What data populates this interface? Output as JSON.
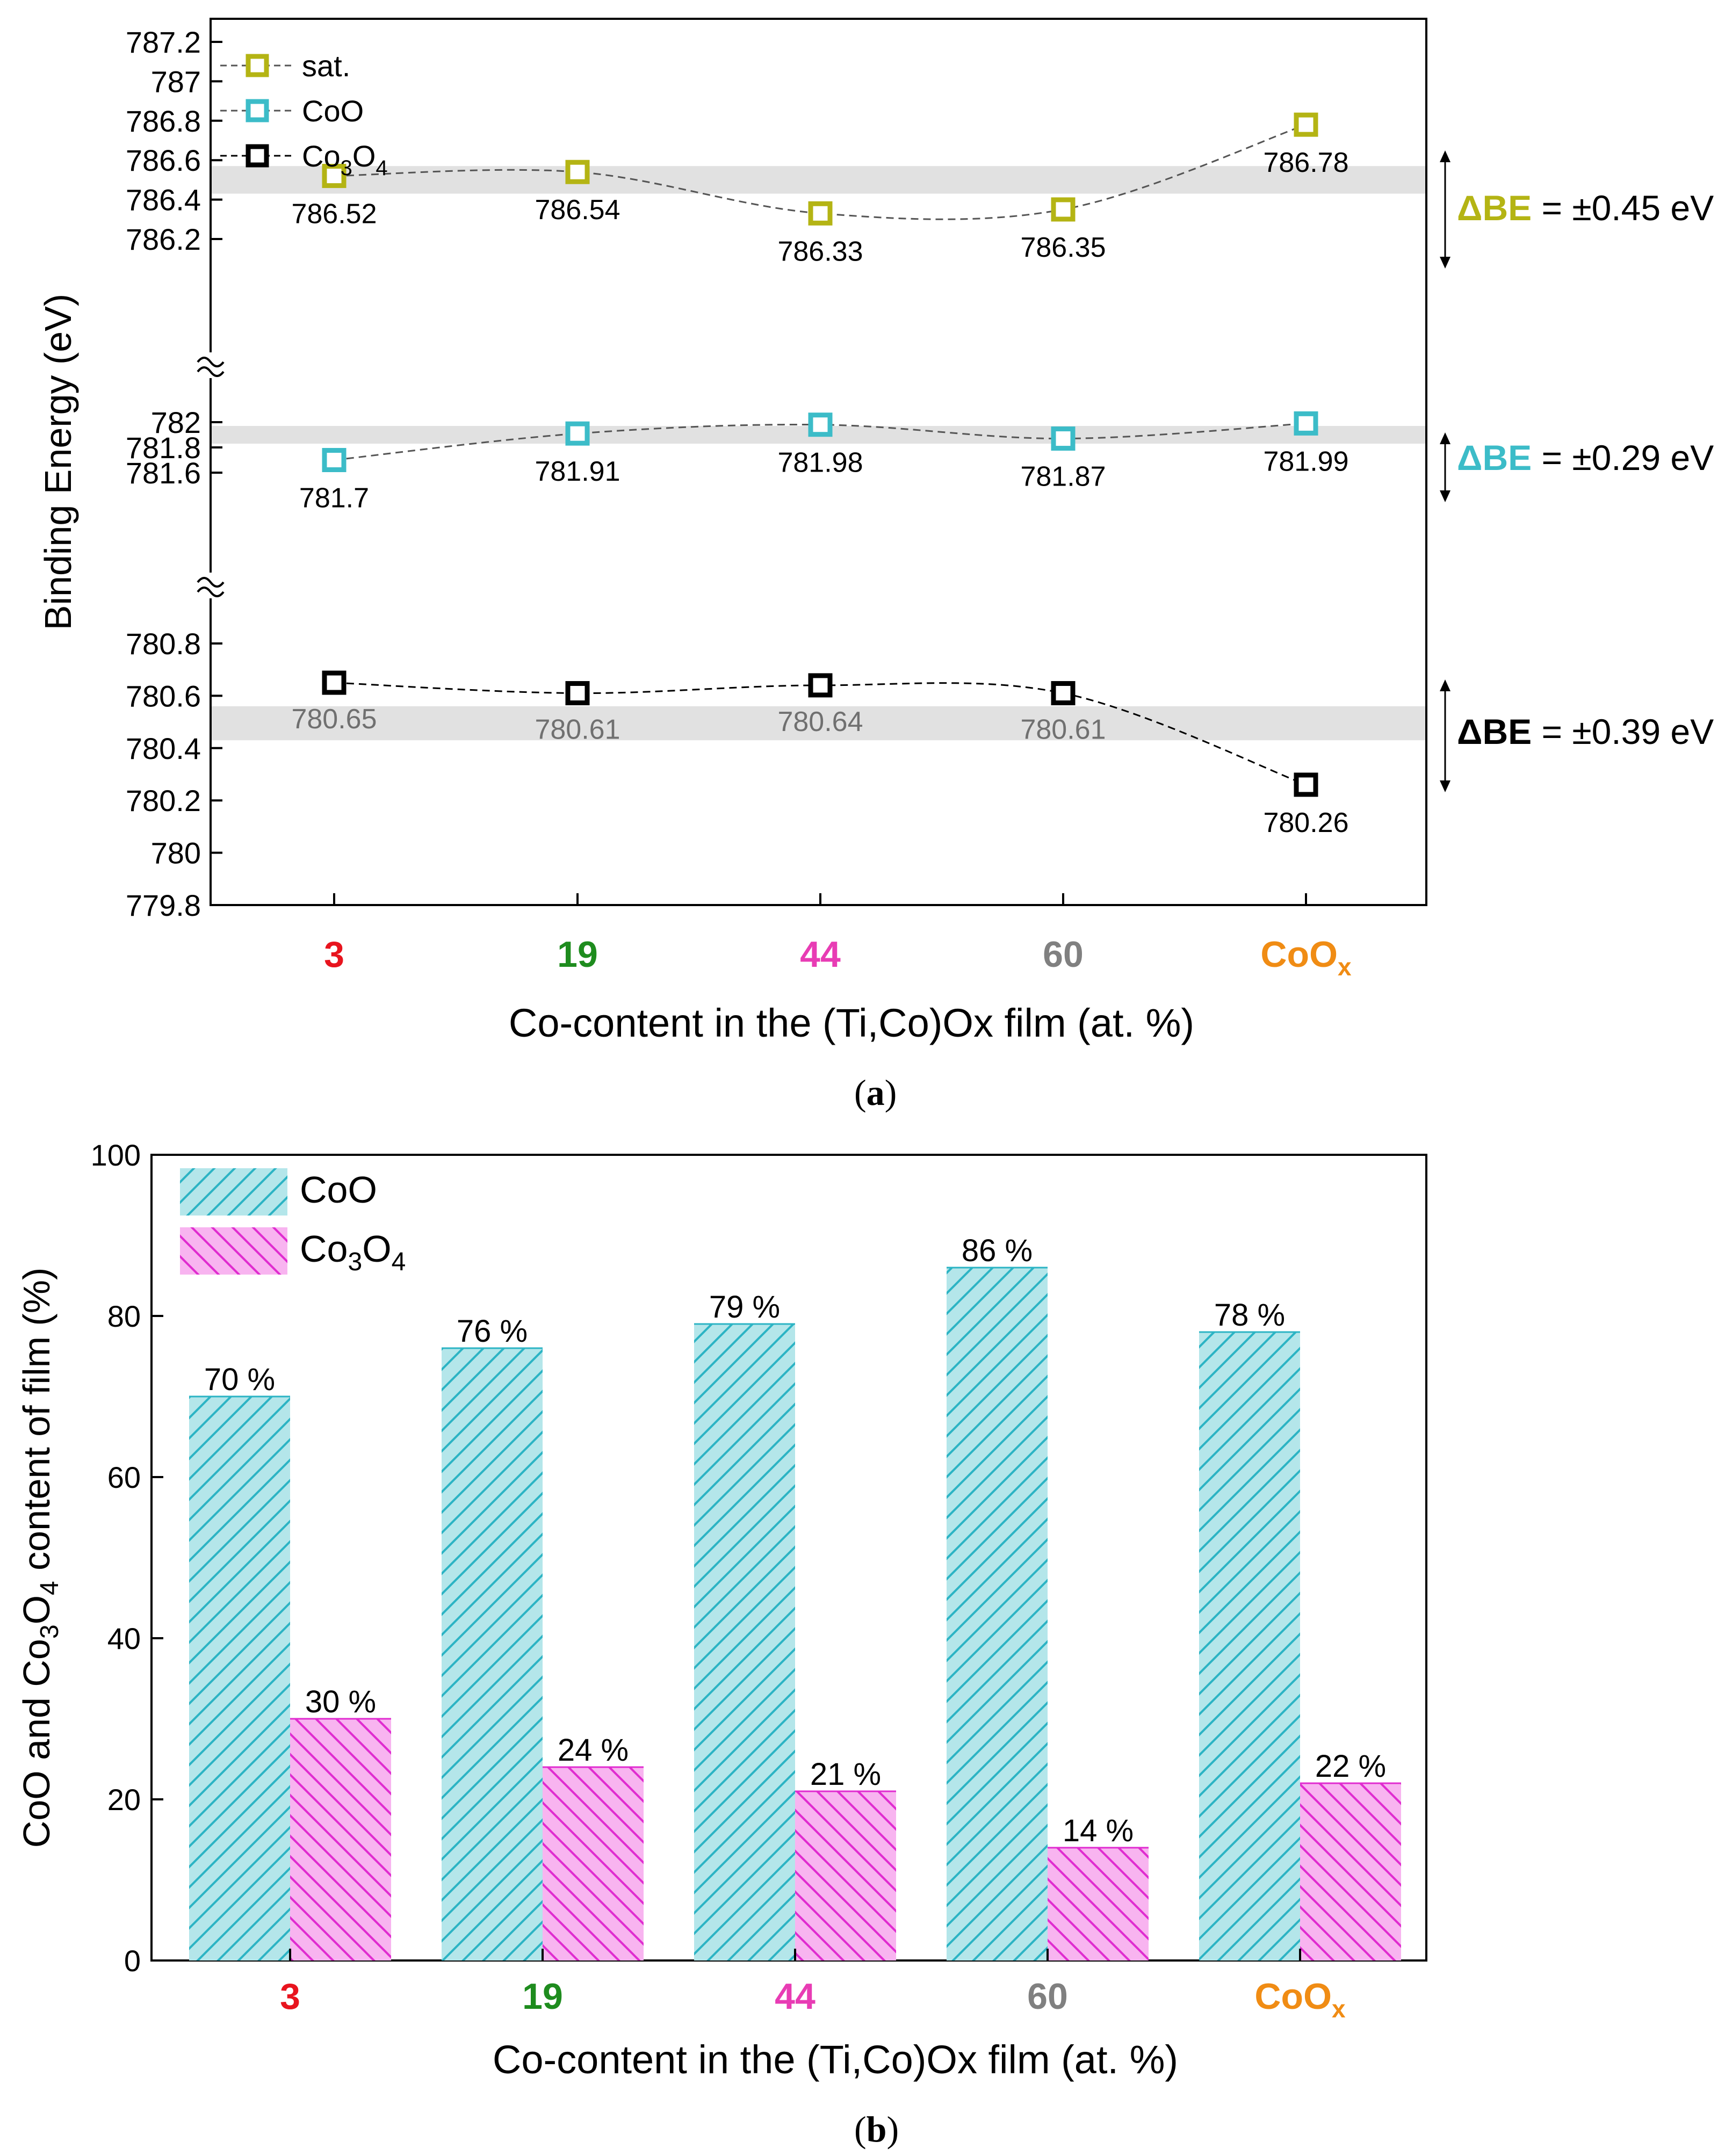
{
  "chart_data": [
    {
      "panel": "a",
      "type": "scatter",
      "panel_label": "a",
      "xlabel": "Co-content in the (Ti,Co)Ox film (at. %)",
      "ylabel": "Binding Energy (eV)",
      "categories": [
        {
          "label": "3",
          "color": "#e8141e"
        },
        {
          "label": "19",
          "color": "#1e8c1e"
        },
        {
          "label": "44",
          "color": "#e83cb4"
        },
        {
          "label": "60",
          "color": "#808080"
        },
        {
          "label": "CoO",
          "sub": "x",
          "color": "#f08c14"
        }
      ],
      "y_segments": [
        {
          "range": [
            786.0,
            787.2
          ],
          "ticks": [
            "786.2",
            "786.4",
            "786.6",
            "786.8",
            "787",
            "787.2"
          ]
        },
        {
          "range": [
            781.5,
            782.2
          ],
          "ticks": [
            "781.6",
            "781.8",
            "782"
          ]
        },
        {
          "range": [
            779.8,
            780.9
          ],
          "ticks": [
            "779.8",
            "780",
            "780.2",
            "780.4",
            "780.6",
            "780.8"
          ]
        }
      ],
      "series": [
        {
          "name": "sat.",
          "legend_main": "sat.",
          "legend_sub": "",
          "legend_tail": "",
          "color": "#b4b414",
          "values": [
            786.52,
            786.54,
            786.33,
            786.35,
            786.78
          ],
          "labels": [
            "786.52",
            "786.54",
            "786.33",
            "786.35",
            "786.78"
          ],
          "segment": 0,
          "band": [
            786.43,
            786.57
          ]
        },
        {
          "name": "CoO",
          "legend_main": "CoO",
          "legend_sub": "",
          "legend_tail": "",
          "color": "#3cbcc8",
          "values": [
            781.7,
            781.91,
            781.98,
            781.87,
            781.99
          ],
          "labels": [
            "781.7",
            "781.91",
            "781.98",
            "781.87",
            "781.99"
          ],
          "segment": 1,
          "band": [
            781.83,
            781.97
          ]
        },
        {
          "name": "Co3O4",
          "legend_main": "Co",
          "legend_sub": "3",
          "legend_tail": "O",
          "legend_sub2": "4",
          "color": "#000000",
          "values": [
            780.65,
            780.61,
            780.64,
            780.61,
            780.26
          ],
          "labels": [
            "780.65",
            "780.61",
            "780.64",
            "780.61",
            "780.26"
          ],
          "segment": 2,
          "band": [
            780.43,
            780.56
          ]
        }
      ],
      "delta_annotations": [
        {
          "prefix": "ΔBE",
          "text": "= ±0.45 eV",
          "color": "#b4b414"
        },
        {
          "prefix": "ΔBE",
          "text": "= ±0.29 eV",
          "color": "#3cbcc8"
        },
        {
          "prefix": "ΔBE",
          "text": "= ±0.39 eV",
          "color": "#000000"
        }
      ]
    },
    {
      "panel": "b",
      "type": "bar",
      "panel_label": "b",
      "xlabel": "Co-content in the (Ti,Co)Ox film (at. %)",
      "ylabel_parts": [
        "CoO and Co",
        "3",
        "O",
        "4",
        " content of film (%)"
      ],
      "ylim": [
        0,
        100
      ],
      "yticks": [
        "0",
        "20",
        "40",
        "60",
        "80",
        "100"
      ],
      "categories": [
        {
          "label": "3",
          "color": "#e8141e"
        },
        {
          "label": "19",
          "color": "#1e8c1e"
        },
        {
          "label": "44",
          "color": "#e83cb4"
        },
        {
          "label": "60",
          "color": "#808080"
        },
        {
          "label": "CoO",
          "sub": "x",
          "color": "#f08c14"
        }
      ],
      "series": [
        {
          "name": "CoO",
          "legend_main": "CoO",
          "legend_sub": "",
          "legend_tail": "",
          "fill": "#b4e6ea",
          "stroke": "#2cb4c4",
          "values": [
            70,
            76,
            79,
            86,
            78
          ],
          "labels": [
            "70 %",
            "76 %",
            "79 %",
            "86 %",
            "78 %"
          ]
        },
        {
          "name": "Co3O4",
          "legend_main": "Co",
          "legend_sub": "3",
          "legend_tail": "O",
          "legend_sub2": "4",
          "fill": "#f8b4f0",
          "stroke": "#e02cd0",
          "values": [
            30,
            24,
            21,
            14,
            22
          ],
          "labels": [
            "30 %",
            "24 %",
            "21 %",
            "14 %",
            "22 %"
          ]
        }
      ]
    }
  ]
}
